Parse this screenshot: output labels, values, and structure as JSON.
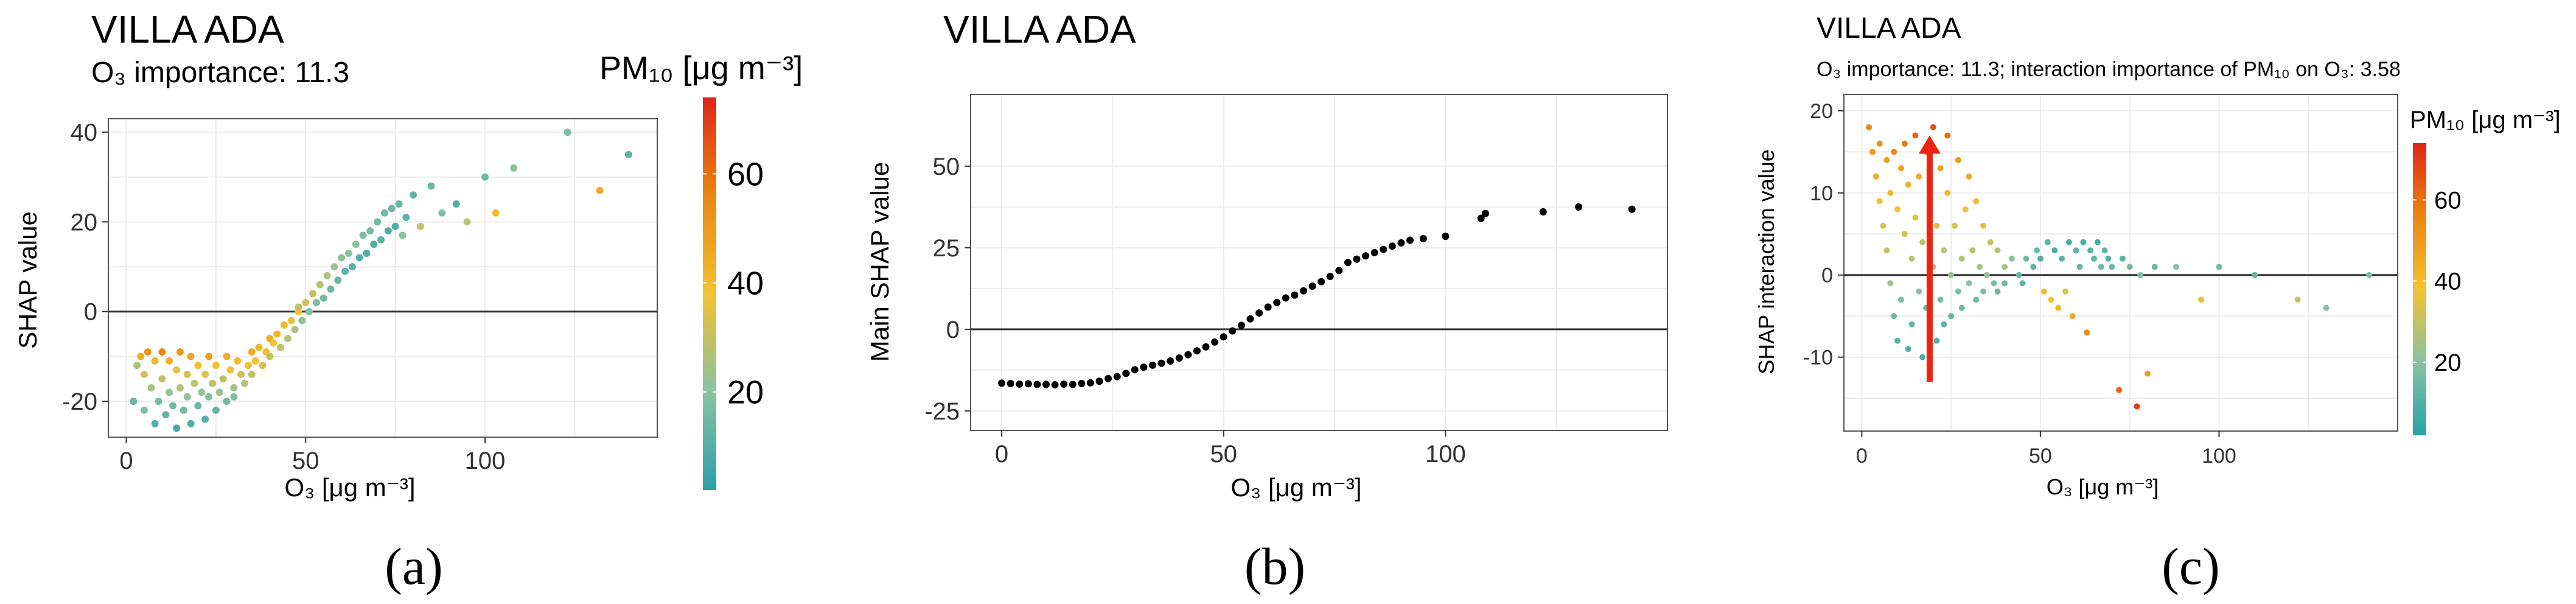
{
  "figure": {
    "captions": [
      "(a)",
      "(b)",
      "(c)"
    ]
  },
  "chart_data": [
    {
      "type": "scatter",
      "panel": "a",
      "title": "VILLA ADA",
      "subtitle": "O₃ importance: 11.3",
      "xlabel": "O₃ [μg m⁻³]",
      "ylabel": "SHAP value",
      "xlim": [
        -5,
        148
      ],
      "ylim": [
        -28,
        43
      ],
      "xticks": [
        0,
        50,
        100
      ],
      "yticks": [
        -20,
        0,
        20,
        40
      ],
      "grid": true,
      "color_by": "PM₁₀ [μg m⁻³]",
      "colorbar": {
        "title": "PM₁₀ [μg m⁻³]",
        "range": [
          2,
          74
        ],
        "ticks": [
          20,
          40,
          60
        ],
        "colors": [
          "#2aa0a8",
          "#89c2a2",
          "#f2c230",
          "#e9860f",
          "#e0251a"
        ],
        "placement": "right"
      },
      "reference_line_y": 0,
      "points": [
        [
          2,
          -20,
          14
        ],
        [
          3,
          -12,
          26
        ],
        [
          4,
          -10,
          45
        ],
        [
          5,
          -14,
          32
        ],
        [
          5,
          -22,
          18
        ],
        [
          6,
          -9,
          52
        ],
        [
          7,
          -17,
          25
        ],
        [
          8,
          -25,
          10
        ],
        [
          8,
          -11,
          41
        ],
        [
          9,
          -20,
          17
        ],
        [
          10,
          -15,
          30
        ],
        [
          10,
          -9,
          55
        ],
        [
          11,
          -23,
          12
        ],
        [
          12,
          -18,
          22
        ],
        [
          12,
          -11,
          43
        ],
        [
          13,
          -21,
          15
        ],
        [
          14,
          -13,
          36
        ],
        [
          14,
          -26,
          8
        ],
        [
          15,
          -17,
          27
        ],
        [
          15,
          -9,
          50
        ],
        [
          16,
          -22,
          16
        ],
        [
          17,
          -14,
          33
        ],
        [
          17,
          -19,
          21
        ],
        [
          18,
          -25,
          9
        ],
        [
          18,
          -10,
          47
        ],
        [
          19,
          -16,
          28
        ],
        [
          20,
          -21,
          14
        ],
        [
          20,
          -12,
          40
        ],
        [
          21,
          -18,
          22
        ],
        [
          22,
          -24,
          11
        ],
        [
          22,
          -14,
          34
        ],
        [
          23,
          -10,
          48
        ],
        [
          23,
          -19,
          19
        ],
        [
          24,
          -16,
          29
        ],
        [
          25,
          -22,
          13
        ],
        [
          25,
          -12,
          39
        ],
        [
          26,
          -18,
          23
        ],
        [
          27,
          -15,
          30
        ],
        [
          28,
          -20,
          16
        ],
        [
          28,
          -10,
          44
        ],
        [
          29,
          -13,
          36
        ],
        [
          30,
          -17,
          24
        ],
        [
          30,
          -19,
          18
        ],
        [
          31,
          -11,
          40
        ],
        [
          32,
          -14,
          32
        ],
        [
          33,
          -16,
          26
        ],
        [
          34,
          -12,
          37
        ],
        [
          35,
          -9,
          45
        ],
        [
          35,
          -14,
          30
        ],
        [
          36,
          -11,
          38
        ],
        [
          37,
          -8,
          42
        ],
        [
          38,
          -12,
          33
        ],
        [
          39,
          -9,
          39
        ],
        [
          40,
          -6,
          44
        ],
        [
          40,
          -10,
          30
        ],
        [
          41,
          -7,
          38
        ],
        [
          42,
          -5,
          41
        ],
        [
          43,
          -8,
          30
        ],
        [
          44,
          -3,
          40
        ],
        [
          45,
          -6,
          28
        ],
        [
          46,
          -2,
          36
        ],
        [
          47,
          -4,
          26
        ],
        [
          48,
          0,
          38
        ],
        [
          48,
          1,
          30
        ],
        [
          49,
          -2,
          22
        ],
        [
          50,
          2,
          33
        ],
        [
          51,
          0,
          20
        ],
        [
          52,
          4,
          30
        ],
        [
          53,
          2,
          18
        ],
        [
          54,
          6,
          28
        ],
        [
          55,
          3,
          16
        ],
        [
          56,
          8,
          26
        ],
        [
          57,
          5,
          14
        ],
        [
          58,
          10,
          24
        ],
        [
          59,
          7,
          13
        ],
        [
          60,
          12,
          22
        ],
        [
          61,
          9,
          12
        ],
        [
          62,
          13,
          20
        ],
        [
          63,
          10,
          11
        ],
        [
          64,
          15,
          20
        ],
        [
          65,
          12,
          10
        ],
        [
          66,
          17,
          18
        ],
        [
          67,
          13,
          10
        ],
        [
          68,
          18,
          17
        ],
        [
          69,
          15,
          9
        ],
        [
          70,
          20,
          16
        ],
        [
          71,
          16,
          12
        ],
        [
          72,
          22,
          15
        ],
        [
          73,
          18,
          10
        ],
        [
          74,
          23,
          14
        ],
        [
          75,
          19,
          9
        ],
        [
          76,
          24,
          13
        ],
        [
          77,
          17,
          20
        ],
        [
          78,
          21,
          12
        ],
        [
          80,
          26,
          12
        ],
        [
          82,
          19,
          30
        ],
        [
          85,
          28,
          14
        ],
        [
          88,
          22,
          18
        ],
        [
          92,
          24,
          10
        ],
        [
          95,
          20,
          28
        ],
        [
          100,
          30,
          15
        ],
        [
          103,
          22,
          40
        ],
        [
          108,
          32,
          20
        ],
        [
          123,
          40,
          18
        ],
        [
          132,
          27,
          45
        ],
        [
          140,
          35,
          12
        ]
      ]
    },
    {
      "type": "scatter",
      "panel": "b",
      "title": "VILLA ADA",
      "xlabel": "O₃ [μg m⁻³]",
      "ylabel": "Main SHAP value",
      "xlim": [
        -7,
        150
      ],
      "ylim": [
        -31,
        72
      ],
      "xticks": [
        0,
        50,
        100
      ],
      "yticks": [
        -25,
        0,
        25,
        50
      ],
      "grid": true,
      "reference_line_y": 0,
      "series_color": "#000000",
      "points": [
        [
          0,
          -16.5
        ],
        [
          2,
          -16.6
        ],
        [
          4,
          -16.8
        ],
        [
          6,
          -16.7
        ],
        [
          8,
          -16.9
        ],
        [
          10,
          -16.9
        ],
        [
          12,
          -17
        ],
        [
          14,
          -16.8
        ],
        [
          16,
          -16.9
        ],
        [
          18,
          -16.6
        ],
        [
          20,
          -16.4
        ],
        [
          22,
          -15.9
        ],
        [
          24,
          -15.1
        ],
        [
          26,
          -14.5
        ],
        [
          28,
          -13.5
        ],
        [
          30,
          -12.4
        ],
        [
          32,
          -11.6
        ],
        [
          34,
          -11
        ],
        [
          36,
          -10.4
        ],
        [
          38,
          -9.7
        ],
        [
          40,
          -8.8
        ],
        [
          42,
          -7.8
        ],
        [
          44,
          -6.6
        ],
        [
          46,
          -5.4
        ],
        [
          48,
          -3.9
        ],
        [
          50,
          -2.3
        ],
        [
          52,
          -0.5
        ],
        [
          54,
          1.2
        ],
        [
          56,
          3.2
        ],
        [
          58,
          5
        ],
        [
          60,
          6.8
        ],
        [
          62,
          8.2
        ],
        [
          64,
          9.6
        ],
        [
          66,
          10.5
        ],
        [
          68,
          11.8
        ],
        [
          70,
          13.2
        ],
        [
          72,
          14.6
        ],
        [
          74,
          16.2
        ],
        [
          76,
          18
        ],
        [
          78,
          20.5
        ],
        [
          80,
          21.5
        ],
        [
          82,
          22.5
        ],
        [
          84,
          23.5
        ],
        [
          86,
          24.5
        ],
        [
          88,
          25.5
        ],
        [
          90,
          26.5
        ],
        [
          92,
          27.3
        ],
        [
          95,
          27.8
        ],
        [
          100,
          28.5
        ],
        [
          108,
          34
        ],
        [
          109,
          35.5
        ],
        [
          122,
          36
        ],
        [
          130,
          37.5
        ],
        [
          142,
          36.8
        ]
      ]
    },
    {
      "type": "scatter",
      "panel": "c",
      "title": "VILLA ADA",
      "subtitle": "O₃ importance: 11.3; interaction importance of PM₁₀ on O₃: 3.58",
      "xlabel": "O₃ [μg m⁻³]",
      "ylabel": "SHAP interaction value",
      "xlim": [
        -5,
        150
      ],
      "ylim": [
        -19,
        22
      ],
      "xticks": [
        0,
        50,
        100
      ],
      "yticks": [
        -10,
        0,
        10,
        20
      ],
      "grid": true,
      "color_by": "PM₁₀ [μg m⁻³]",
      "colorbar": {
        "title": "PM₁₀ [μg m⁻³]",
        "range": [
          2,
          74
        ],
        "ticks": [
          20,
          40,
          60
        ],
        "colors": [
          "#2aa0a8",
          "#89c2a2",
          "#f2c230",
          "#e9860f",
          "#e0251a"
        ],
        "placement": "right"
      },
      "reference_line_y": 0,
      "annotation": {
        "type": "arrow",
        "x": 19,
        "y_from": -13,
        "y_to": 17,
        "color": "#ee2211"
      },
      "points": [
        [
          2,
          18,
          55
        ],
        [
          3,
          15,
          50
        ],
        [
          4,
          12,
          45
        ],
        [
          5,
          9,
          38
        ],
        [
          5,
          16,
          52
        ],
        [
          6,
          6,
          33
        ],
        [
          7,
          3,
          30
        ],
        [
          7,
          14,
          48
        ],
        [
          8,
          -1,
          24
        ],
        [
          8,
          10,
          42
        ],
        [
          9,
          -5,
          15
        ],
        [
          9,
          15,
          55
        ],
        [
          10,
          -8,
          10
        ],
        [
          10,
          8,
          38
        ],
        [
          11,
          13,
          47
        ],
        [
          11,
          -3,
          18
        ],
        [
          12,
          5,
          32
        ],
        [
          12,
          16,
          58
        ],
        [
          13,
          -9,
          9
        ],
        [
          13,
          11,
          44
        ],
        [
          14,
          2,
          27
        ],
        [
          14,
          -6,
          13
        ],
        [
          15,
          17,
          62
        ],
        [
          15,
          7,
          35
        ],
        [
          16,
          -2,
          20
        ],
        [
          16,
          12,
          45
        ],
        [
          17,
          -10,
          8
        ],
        [
          17,
          4,
          29
        ],
        [
          18,
          15,
          52
        ],
        [
          18,
          -4,
          16
        ],
        [
          19,
          9,
          40
        ],
        [
          19,
          -7,
          11
        ],
        [
          20,
          1,
          24
        ],
        [
          20,
          18,
          66
        ],
        [
          21,
          -8,
          10
        ],
        [
          21,
          6,
          33
        ],
        [
          22,
          13,
          48
        ],
        [
          22,
          -3,
          17
        ],
        [
          23,
          3,
          27
        ],
        [
          23,
          -6,
          12
        ],
        [
          24,
          10,
          42
        ],
        [
          24,
          17,
          60
        ],
        [
          25,
          0,
          22
        ],
        [
          25,
          -5,
          13
        ],
        [
          26,
          6,
          34
        ],
        [
          27,
          -2,
          18
        ],
        [
          27,
          14,
          50
        ],
        [
          28,
          2,
          26
        ],
        [
          28,
          -4,
          15
        ],
        [
          29,
          8,
          38
        ],
        [
          30,
          -1,
          20
        ],
        [
          30,
          12,
          46
        ],
        [
          31,
          3,
          28
        ],
        [
          32,
          -3,
          16
        ],
        [
          32,
          9,
          40
        ],
        [
          33,
          1,
          24
        ],
        [
          34,
          -2,
          18
        ],
        [
          34,
          6,
          35
        ],
        [
          35,
          0,
          22
        ],
        [
          36,
          4,
          31
        ],
        [
          37,
          -1,
          18
        ],
        [
          38,
          3,
          28
        ],
        [
          38,
          -2,
          14
        ],
        [
          40,
          1,
          24
        ],
        [
          40,
          -1,
          16
        ],
        [
          42,
          2,
          20
        ],
        [
          44,
          0,
          14
        ],
        [
          45,
          -1,
          12
        ],
        [
          46,
          2,
          16
        ],
        [
          48,
          1,
          13
        ],
        [
          49,
          3,
          15
        ],
        [
          50,
          2,
          10
        ],
        [
          51,
          -2,
          40
        ],
        [
          52,
          4,
          12
        ],
        [
          53,
          -3,
          38
        ],
        [
          54,
          3,
          9
        ],
        [
          55,
          -4,
          42
        ],
        [
          56,
          2,
          11
        ],
        [
          57,
          -2,
          35
        ],
        [
          58,
          4,
          10
        ],
        [
          59,
          -5,
          45
        ],
        [
          60,
          3,
          12
        ],
        [
          61,
          1,
          14
        ],
        [
          62,
          4,
          9
        ],
        [
          63,
          -7,
          55
        ],
        [
          64,
          3,
          11
        ],
        [
          65,
          2,
          13
        ],
        [
          66,
          4,
          8
        ],
        [
          67,
          1,
          15
        ],
        [
          68,
          3,
          12
        ],
        [
          69,
          2,
          10
        ],
        [
          70,
          1,
          14
        ],
        [
          72,
          -14,
          62
        ],
        [
          73,
          2,
          12
        ],
        [
          75,
          1,
          16
        ],
        [
          77,
          -16,
          70
        ],
        [
          78,
          0,
          18
        ],
        [
          80,
          -12,
          48
        ],
        [
          82,
          1,
          14
        ],
        [
          88,
          1,
          20
        ],
        [
          95,
          -3,
          36
        ],
        [
          100,
          1,
          16
        ],
        [
          110,
          0,
          13
        ],
        [
          122,
          -3,
          30
        ],
        [
          130,
          -4,
          20
        ],
        [
          142,
          0,
          18
        ]
      ]
    }
  ]
}
